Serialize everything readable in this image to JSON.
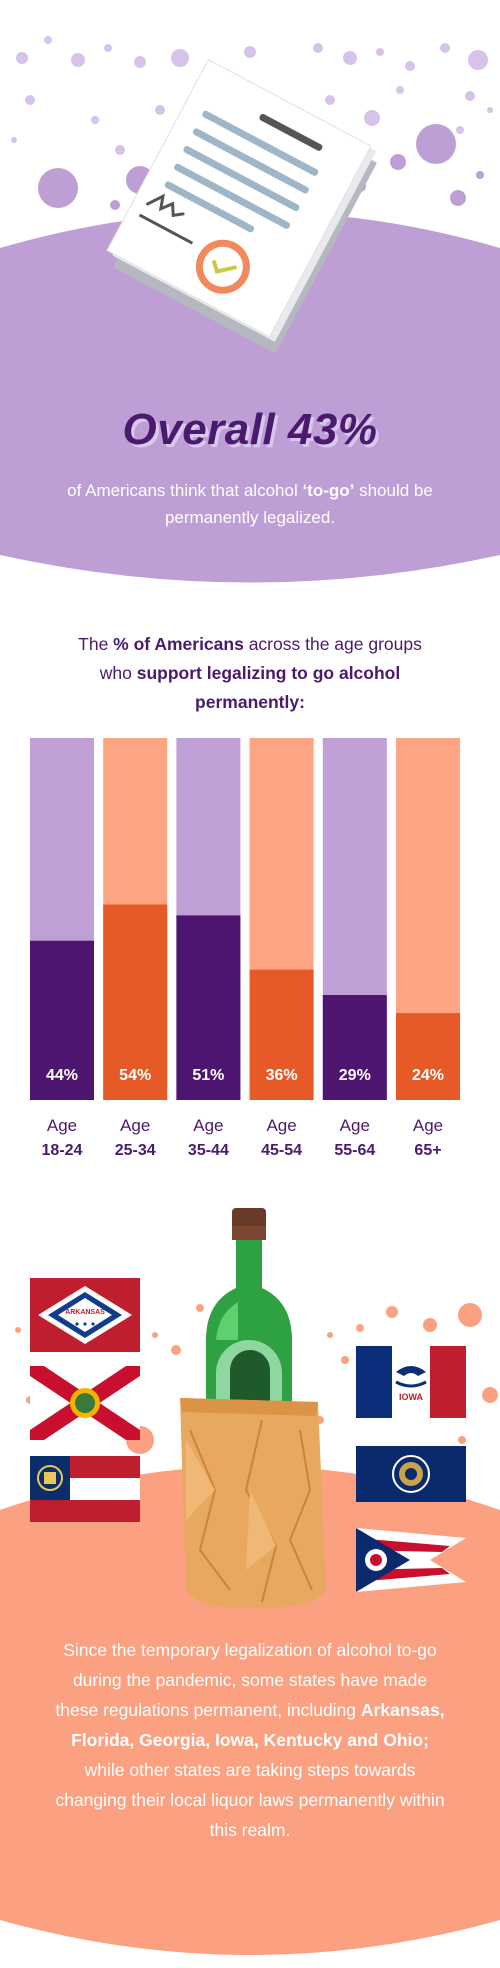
{
  "header": {
    "headline": "Overall 43%",
    "subline_before": "of Americans think that alcohol ",
    "subline_emph": "‘to-go’",
    "subline_after": " should be permanently legalized."
  },
  "chart_title": {
    "part1": "The ",
    "bold1": "% of Americans",
    "part2": " across the age groups who ",
    "bold2": "support legalizing to go alcohol permanently:"
  },
  "chart_data": {
    "type": "bar",
    "categories": [
      "18-24",
      "25-34",
      "35-44",
      "45-54",
      "55-64",
      "65+"
    ],
    "category_prefix": "Age",
    "values": [
      44,
      54,
      51,
      36,
      29,
      24
    ],
    "value_labels": [
      "44%",
      "54%",
      "51%",
      "36%",
      "29%",
      "24%"
    ],
    "ylim": [
      0,
      100
    ],
    "bar_colors": [
      "#4e1570",
      "#e65a27",
      "#4e1570",
      "#e65a27",
      "#4e1570",
      "#e65a27"
    ],
    "track_colors": [
      "#bfa0d6",
      "#fda483",
      "#bfa0d6",
      "#fda483",
      "#bfa0d6",
      "#fda483"
    ],
    "title": "",
    "xlabel": "",
    "ylabel": ""
  },
  "flags": {
    "arkansas_label": "ARKANSAS",
    "iowa_label": "IOWA"
  },
  "paragraph": {
    "text1": "Since the temporary legalization of alcohol to-go during the pandemic, some states have made these regulations permanent, including ",
    "bold": "Arkansas, Florida, Georgia, Iowa, Kentucky and Ohio;",
    "text2": " while other states are taking steps towards changing their local liquor laws permanently within this realm."
  },
  "colors": {
    "purple_dark": "#4a1a6e",
    "purple_light": "#bd9fd6",
    "orange_dark": "#e65a27",
    "orange_light": "#fba181"
  }
}
